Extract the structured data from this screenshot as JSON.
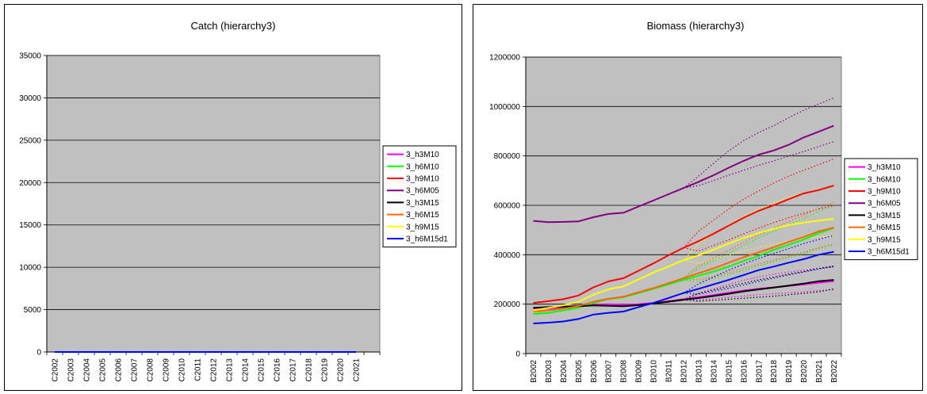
{
  "chart_data": [
    {
      "type": "line",
      "title": "Catch (hierarchy3)",
      "xlabel": "",
      "ylabel": "",
      "ylim": [
        0,
        35000
      ],
      "yticks": [
        "0",
        "5000",
        "10000",
        "15000",
        "20000",
        "25000",
        "30000",
        "35000"
      ],
      "categories": [
        "C2002",
        "C2003",
        "C2004",
        "C2005",
        "C2006",
        "C2007",
        "C2008",
        "C2009",
        "C2010",
        "C2011",
        "C2012",
        "C2013",
        "C2014",
        "C2015",
        "C2016",
        "C2017",
        "C2018",
        "C2019",
        "C2020",
        "C2021"
      ],
      "grid": true,
      "legend_position": "right",
      "series": [
        {
          "name": "3_h3M10",
          "color": "#ff00ff",
          "values": [
            0,
            0,
            0,
            0,
            0,
            0,
            0,
            0,
            0,
            0,
            0,
            0,
            0,
            0,
            0,
            0,
            0,
            0,
            0,
            0
          ]
        },
        {
          "name": "3_h6M10",
          "color": "#00ff00",
          "values": [
            0,
            0,
            0,
            0,
            0,
            0,
            0,
            0,
            0,
            0,
            0,
            0,
            0,
            0,
            0,
            0,
            0,
            0,
            0,
            0
          ]
        },
        {
          "name": "3_h9M10",
          "color": "#ff0000",
          "values": [
            0,
            0,
            0,
            0,
            0,
            0,
            0,
            0,
            0,
            0,
            0,
            0,
            0,
            0,
            0,
            0,
            0,
            0,
            0,
            0
          ]
        },
        {
          "name": "3_h6M05",
          "color": "#800080",
          "values": [
            0,
            0,
            0,
            0,
            0,
            0,
            0,
            0,
            0,
            0,
            0,
            0,
            0,
            0,
            0,
            0,
            0,
            0,
            0,
            0
          ]
        },
        {
          "name": "3_h3M15",
          "color": "#000000",
          "values": [
            0,
            0,
            0,
            0,
            0,
            0,
            0,
            0,
            0,
            0,
            0,
            0,
            0,
            0,
            0,
            0,
            0,
            0,
            0,
            0
          ]
        },
        {
          "name": "3_h6M15",
          "color": "#ff6600",
          "values": [
            0,
            0,
            0,
            0,
            0,
            0,
            0,
            0,
            0,
            0,
            0,
            0,
            0,
            0,
            0,
            0,
            0,
            0,
            0,
            0
          ]
        },
        {
          "name": "3_h9M15",
          "color": "#ffff00",
          "values": [
            0,
            0,
            0,
            0,
            0,
            0,
            0,
            0,
            0,
            0,
            0,
            0,
            0,
            0,
            0,
            0,
            0,
            0,
            0,
            0
          ]
        },
        {
          "name": "3_h6M15d1",
          "color": "#0000ff",
          "values": [
            0,
            0,
            0,
            0,
            0,
            0,
            0,
            0,
            0,
            0,
            0,
            0,
            0,
            0,
            0,
            0,
            0,
            0,
            0,
            0
          ]
        }
      ]
    },
    {
      "type": "line",
      "title": "Biomass (hierarchy3)",
      "xlabel": "",
      "ylabel": "",
      "ylim": [
        0,
        1200000
      ],
      "yticks": [
        "0",
        "200000",
        "400000",
        "600000",
        "800000",
        "1000000",
        "1200000"
      ],
      "categories": [
        "B2002",
        "B2003",
        "B2004",
        "B2005",
        "B2006",
        "B2007",
        "B2008",
        "B2009",
        "B2010",
        "B2011",
        "B2012",
        "B2013",
        "B2014",
        "B2015",
        "B2016",
        "B2017",
        "B2018",
        "B2019",
        "B2020",
        "B2021",
        "B2022"
      ],
      "grid": true,
      "legend_position": "right",
      "series": [
        {
          "name": "3_h3M10",
          "color": "#ff00ff",
          "values": [
            180000,
            183000,
            187000,
            193000,
            198000,
            200000,
            197000,
            200000,
            205000,
            212000,
            220000,
            228000,
            237000,
            246000,
            255000,
            262000,
            268000,
            274000,
            280000,
            287000,
            293000
          ],
          "upper": [
            null,
            null,
            null,
            null,
            null,
            null,
            null,
            null,
            null,
            null,
            null,
            245000,
            262000,
            280000,
            297000,
            310000,
            322000,
            330000,
            338000,
            345000,
            350000
          ],
          "lower": [
            null,
            null,
            null,
            null,
            null,
            null,
            null,
            null,
            null,
            null,
            null,
            218000,
            222000,
            228000,
            233000,
            238000,
            242000,
            246000,
            250000,
            255000,
            258000
          ]
        },
        {
          "name": "3_h6M10",
          "color": "#00ff00",
          "values": [
            160000,
            165000,
            175000,
            185000,
            205000,
            220000,
            228000,
            245000,
            262000,
            280000,
            298000,
            315000,
            332000,
            352000,
            375000,
            395000,
            420000,
            440000,
            462000,
            488000,
            508000
          ],
          "upper": [
            null,
            null,
            null,
            null,
            null,
            null,
            null,
            null,
            null,
            null,
            null,
            345000,
            375000,
            405000,
            438000,
            468000,
            495000,
            522000,
            548000,
            575000,
            600000
          ],
          "lower": [
            null,
            null,
            null,
            null,
            null,
            null,
            null,
            null,
            null,
            null,
            null,
            290000,
            305000,
            320000,
            338000,
            355000,
            372000,
            390000,
            405000,
            425000,
            440000
          ]
        },
        {
          "name": "3_h9M10",
          "color": "#ff0000",
          "values": [
            205000,
            212000,
            220000,
            235000,
            268000,
            292000,
            305000,
            335000,
            365000,
            398000,
            428000,
            455000,
            485000,
            518000,
            550000,
            578000,
            600000,
            625000,
            648000,
            662000,
            680000
          ],
          "upper": [
            null,
            null,
            null,
            null,
            null,
            null,
            null,
            null,
            null,
            null,
            null,
            495000,
            540000,
            585000,
            625000,
            658000,
            690000,
            718000,
            742000,
            765000,
            788000
          ],
          "lower": [
            null,
            null,
            null,
            null,
            null,
            null,
            null,
            null,
            null,
            null,
            null,
            415000,
            438000,
            460000,
            485000,
            508000,
            530000,
            550000,
            568000,
            585000,
            600000
          ]
        },
        {
          "name": "3_h6M05",
          "color": "#800080",
          "values": [
            537000,
            532000,
            533000,
            535000,
            552000,
            565000,
            570000,
            595000,
            620000,
            645000,
            670000,
            695000,
            722000,
            752000,
            780000,
            805000,
            822000,
            845000,
            875000,
            898000,
            922000
          ],
          "upper": [
            null,
            null,
            null,
            null,
            null,
            null,
            null,
            null,
            null,
            null,
            null,
            718000,
            770000,
            820000,
            862000,
            895000,
            922000,
            955000,
            985000,
            1010000,
            1035000
          ],
          "lower": [
            null,
            null,
            null,
            null,
            null,
            null,
            null,
            null,
            null,
            null,
            null,
            680000,
            700000,
            722000,
            742000,
            762000,
            780000,
            800000,
            818000,
            838000,
            858000
          ]
        },
        {
          "name": "3_h3M15",
          "color": "#000000",
          "values": [
            185000,
            188000,
            190000,
            192000,
            195000,
            193000,
            192000,
            196000,
            203000,
            210000,
            218000,
            225000,
            233000,
            242000,
            252000,
            260000,
            267000,
            275000,
            283000,
            293000,
            298000
          ],
          "upper": [
            null,
            null,
            null,
            null,
            null,
            null,
            null,
            null,
            null,
            null,
            null,
            243000,
            258000,
            272000,
            285000,
            298000,
            310000,
            322000,
            332000,
            345000,
            355000
          ],
          "lower": [
            null,
            null,
            null,
            null,
            null,
            null,
            null,
            null,
            null,
            null,
            null,
            212000,
            216000,
            220000,
            224000,
            228000,
            232000,
            238000,
            244000,
            250000,
            262000
          ]
        },
        {
          "name": "3_h6M15",
          "color": "#ff6600",
          "values": [
            170000,
            175000,
            182000,
            192000,
            210000,
            222000,
            230000,
            248000,
            265000,
            285000,
            305000,
            325000,
            345000,
            368000,
            390000,
            410000,
            430000,
            452000,
            472000,
            495000,
            510000
          ],
          "upper": [
            null,
            null,
            null,
            null,
            null,
            null,
            null,
            null,
            null,
            null,
            null,
            355000,
            385000,
            418000,
            450000,
            480000,
            508000,
            535000,
            560000,
            588000,
            612000
          ],
          "lower": [
            null,
            null,
            null,
            null,
            null,
            null,
            null,
            null,
            null,
            null,
            null,
            298000,
            312000,
            328000,
            345000,
            362000,
            378000,
            395000,
            410000,
            428000,
            445000
          ]
        },
        {
          "name": "3_h9M15",
          "color": "#ffff00",
          "values": [
            175000,
            185000,
            195000,
            210000,
            238000,
            260000,
            272000,
            300000,
            328000,
            352000,
            378000,
            398000,
            420000,
            445000,
            468000,
            488000,
            505000,
            520000,
            530000,
            538000,
            545000
          ],
          "upper": [
            null,
            null,
            null,
            null,
            null,
            null,
            null,
            null,
            null,
            null,
            null,
            445000,
            485000,
            522000,
            555000,
            585000,
            612000,
            632000,
            650000,
            665000,
            680000
          ],
          "lower": [
            null,
            null,
            null,
            null,
            null,
            null,
            null,
            null,
            null,
            null,
            null,
            365000,
            382000,
            398000,
            415000,
            430000,
            442000,
            455000,
            465000,
            472000,
            480000
          ]
        },
        {
          "name": "3_h6M15d1",
          "color": "#0000ff",
          "values": [
            122000,
            125000,
            130000,
            140000,
            158000,
            165000,
            170000,
            188000,
            205000,
            225000,
            245000,
            262000,
            280000,
            298000,
            318000,
            338000,
            352000,
            368000,
            382000,
            400000,
            412000
          ],
          "upper": [
            null,
            null,
            null,
            null,
            null,
            null,
            null,
            null,
            null,
            null,
            null,
            282000,
            310000,
            338000,
            362000,
            385000,
            405000,
            425000,
            445000,
            462000,
            478000
          ],
          "lower": [
            null,
            null,
            null,
            null,
            null,
            null,
            null,
            null,
            null,
            null,
            null,
            240000,
            252000,
            264000,
            278000,
            292000,
            305000,
            318000,
            330000,
            342000,
            352000
          ]
        }
      ]
    }
  ]
}
